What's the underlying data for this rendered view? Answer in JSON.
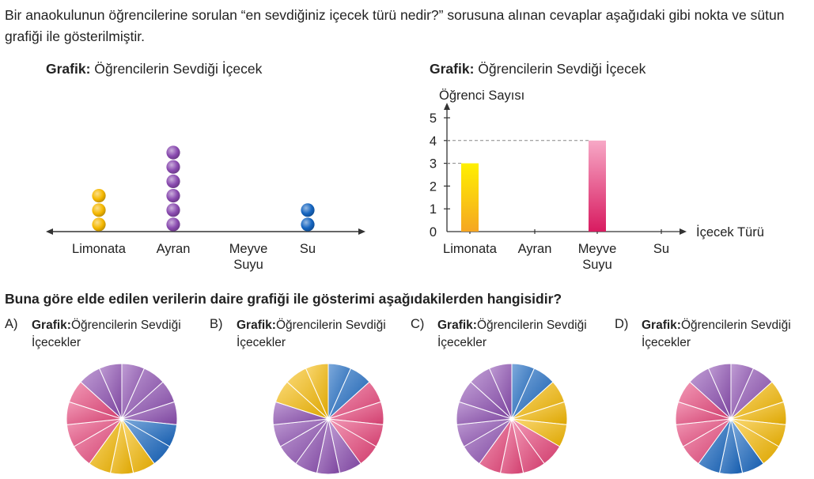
{
  "intro": "Bir anaokulunun öğrencilerine sorulan “en sevdiğiniz içecek türü nedir?” sorusuna alınan cevaplar aşağıdaki gibi nokta ve sütun grafiği ile gösterilmiştir.",
  "chart_data": [
    {
      "type": "dot",
      "title_prefix": "Grafik:",
      "title": "Öğrencilerin Sevdiği İçecek",
      "categories": [
        "Limonata",
        "Ayran",
        "Meyve\nSuyu",
        "Su"
      ],
      "values": [
        3,
        6,
        0,
        2
      ],
      "colors": [
        "#f5b800",
        "#8a4bb0",
        "#000000",
        "#1565c0"
      ]
    },
    {
      "type": "bar",
      "title_prefix": "Grafik:",
      "title": "Öğrencilerin Sevdiği İçecek",
      "ylabel": "Öğrenci Sayısı",
      "xlabel": "İçecek Türü",
      "categories": [
        "Limonata",
        "Ayran",
        "Meyve\nSuyu",
        "Su"
      ],
      "values": [
        3,
        0,
        4,
        0
      ],
      "yticks": [
        0,
        1,
        2,
        3,
        4,
        5
      ],
      "ylim": [
        0,
        5
      ],
      "colors": [
        "#f9c21b",
        "#000000",
        "#e8457a",
        "#000000"
      ]
    },
    {
      "type": "pie",
      "option": "A)",
      "title_prefix": "Grafik:",
      "title": "Öğrencilerin Sevdiği\nİçecekler",
      "slices": [
        {
          "color": "#8a4bb0",
          "count": 4
        },
        {
          "color": "#1565c0",
          "count": 2
        },
        {
          "color": "#f5b800",
          "count": 3
        },
        {
          "color": "#e8457a",
          "count": 4
        },
        {
          "color": "#8a4bb0",
          "count": 2
        }
      ]
    },
    {
      "type": "pie",
      "option": "B)",
      "title_prefix": "Grafik:",
      "title": "Öğrencilerin Sevdiği\nİçecekler",
      "slices": [
        {
          "color": "#1565c0",
          "count": 2
        },
        {
          "color": "#e8457a",
          "count": 4
        },
        {
          "color": "#8a4bb0",
          "count": 6
        },
        {
          "color": "#f5b800",
          "count": 3
        }
      ]
    },
    {
      "type": "pie",
      "option": "C)",
      "title_prefix": "Grafik:",
      "title": "Öğrencilerin Sevdiği\nİçecekler",
      "slices": [
        {
          "color": "#1565c0",
          "count": 2
        },
        {
          "color": "#f5b800",
          "count": 3
        },
        {
          "color": "#e8457a",
          "count": 4
        },
        {
          "color": "#8a4bb0",
          "count": 6
        }
      ]
    },
    {
      "type": "pie",
      "option": "D)",
      "title_prefix": "Grafik:",
      "title": "Öğrencilerin Sevdiği\nİçecekler",
      "slices": [
        {
          "color": "#8a4bb0",
          "count": 2
        },
        {
          "color": "#f5b800",
          "count": 4
        },
        {
          "color": "#1565c0",
          "count": 3
        },
        {
          "color": "#e8457a",
          "count": 4
        },
        {
          "color": "#8a4bb0",
          "count": 2
        }
      ]
    }
  ],
  "question": "Buna göre elde edilen verilerin daire grafiği ile gösterimi aşağıdakilerden hangisidir?"
}
